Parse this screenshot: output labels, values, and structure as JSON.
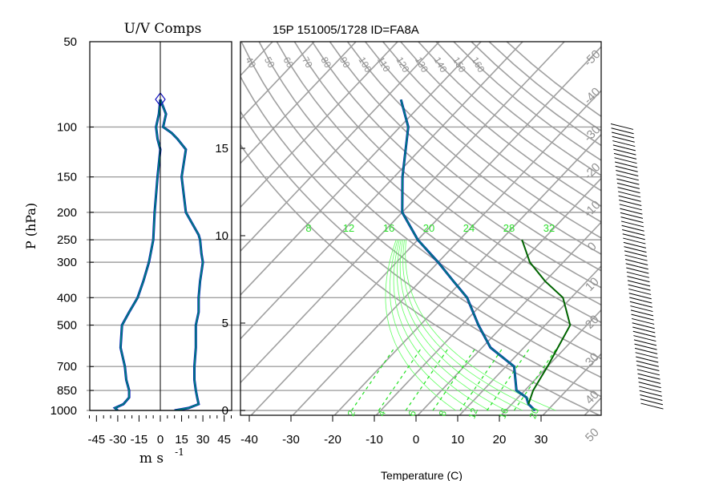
{
  "chart_data": [
    {
      "type": "line",
      "name": "uv-components-panel",
      "title": "U/V Comps",
      "ylabel": "P (hPa)",
      "xlabel_main": "m s",
      "xlabel_exp": "-1",
      "y_scale": "log",
      "ylim": [
        1000,
        50
      ],
      "xlim": [
        -50,
        50
      ],
      "y_ticks": [
        "50",
        "100",
        "150",
        "200",
        "250",
        "300",
        "400",
        "500",
        "700",
        "850",
        "1000"
      ],
      "y_tick_values": [
        50,
        100,
        150,
        200,
        250,
        300,
        400,
        500,
        700,
        850,
        1000
      ],
      "x_ticks": [
        "-45",
        "-30",
        "-15",
        "0",
        "15",
        "30",
        "45"
      ],
      "x_tick_values": [
        -45,
        -30,
        -15,
        0,
        15,
        30,
        45
      ],
      "series": [
        {
          "color": "#00807f",
          "x": [
            -30,
            -32,
            -26,
            -22,
            -22,
            -24,
            -25,
            -28,
            -27,
            -22,
            -16,
            -12,
            -8,
            -5,
            -4,
            -2,
            0,
            -2,
            -3,
            -1,
            0
          ],
          "y": [
            1000,
            980,
            950,
            900,
            850,
            780,
            700,
            600,
            500,
            450,
            400,
            350,
            300,
            250,
            200,
            150,
            120,
            110,
            100,
            90,
            80
          ]
        },
        {
          "color": "#00807f",
          "x": [
            10,
            20,
            27,
            26,
            25,
            24,
            24,
            25,
            25,
            27,
            27,
            28,
            30,
            29,
            28,
            27,
            18,
            15,
            18,
            12,
            8,
            2,
            4,
            0
          ],
          "y": [
            1000,
            980,
            950,
            900,
            850,
            780,
            700,
            600,
            500,
            450,
            400,
            350,
            300,
            280,
            250,
            240,
            200,
            150,
            120,
            110,
            105,
            100,
            90,
            80
          ]
        }
      ]
    },
    {
      "type": "line",
      "name": "skew-t-sounding",
      "title": "15P 151005/1728 ID=FA8A",
      "xlabel": "Temperature (C)",
      "xlim": [
        -40,
        40
      ],
      "x_ticks": [
        "-40",
        "-30",
        "-20",
        "-10",
        "0",
        "10",
        "20",
        "30"
      ],
      "x_tick_values": [
        -40,
        -30,
        -20,
        -10,
        0,
        10,
        20,
        30
      ],
      "height_km_ticks": [
        "0",
        "5",
        "10",
        "15"
      ],
      "height_km_values": [
        0,
        5,
        10,
        15
      ],
      "dry_adiabat_labels": [
        "40",
        "50",
        "60",
        "70",
        "80",
        "90",
        "100",
        "110",
        "120",
        "130",
        "140",
        "150",
        "160"
      ],
      "isotherm_labels": [
        "-50",
        "-40",
        "-30",
        "-20",
        "-10",
        "0",
        "10",
        "20",
        "30",
        "40",
        "50"
      ],
      "moist_adiabat_labels": [
        "8",
        "12",
        "16",
        "20",
        "24",
        "28",
        "32"
      ],
      "mixing_ratio_labels": [
        "2",
        "4",
        "6",
        "8",
        "12",
        "16",
        "20"
      ],
      "temperature_profile": {
        "color": "#000000",
        "temp_c": [
          27,
          24,
          22,
          18,
          12,
          2,
          -6,
          -15,
          -22,
          -30,
          -40,
          -50,
          -58,
          -68,
          -76
        ],
        "pressure_hpa": [
          1000,
          950,
          900,
          850,
          700,
          600,
          500,
          400,
          350,
          300,
          250,
          200,
          150,
          100,
          80
        ]
      },
      "parcel_path": {
        "color": "#006400",
        "temp_c": [
          24,
          22,
          20,
          16,
          8,
          0,
          -8,
          -15
        ],
        "pressure_hpa": [
          950,
          850,
          700,
          500,
          400,
          350,
          300,
          250
        ]
      }
    }
  ]
}
